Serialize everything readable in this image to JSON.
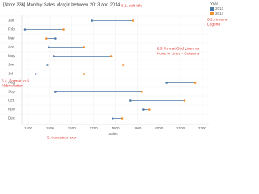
{
  "chart_data": {
    "type": "dumbbell",
    "title": "[Store 236] Monthly Sales Margin between 2013 and 2014",
    "x_label": "Sales",
    "legend_title": "Year",
    "categories": [
      "Jan",
      "Feb",
      "Mar",
      "Apr",
      "May",
      "Jun",
      "Jul",
      "Aug",
      "Sep",
      "Oct",
      "Nov",
      "Dec"
    ],
    "series": [
      {
        "name": "2013",
        "color": "#4e79a7",
        "values": [
          1693,
          1385,
          1524,
          1494,
          1517,
          1487,
          1434,
          2035,
          1524,
          1870,
          1930,
          1788
        ]
      },
      {
        "name": "2014",
        "color": "#f28e2b",
        "values": [
          1881,
          1562,
          1483,
          1656,
          1780,
          1836,
          1656,
          2167,
          1922,
          2118,
          1956,
          1832
        ]
      }
    ],
    "xlim": [
      1370,
      2230
    ],
    "xticks": [
      1400,
      1500,
      1600,
      1700,
      1800,
      1900,
      2000,
      2100,
      2200
    ],
    "grid": true,
    "annotations": [
      [
        "6.1. edit title"
      ],
      [
        "6.2. rename",
        "Legend"
      ],
      [
        "6.3. format Grid Lines as",
        "None in Lines - Columns"
      ],
      [
        "6.4. Format to $",
        "Abbreviation"
      ],
      [
        "5. truncate x axis"
      ]
    ]
  }
}
